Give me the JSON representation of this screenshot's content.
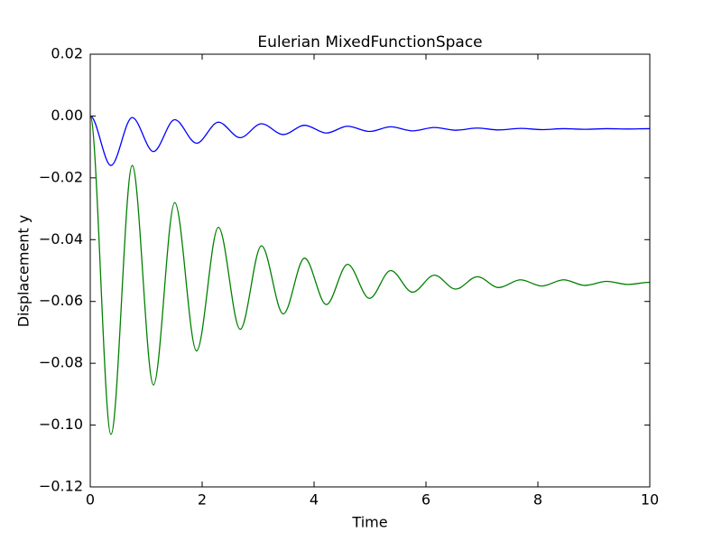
{
  "chart_data": {
    "type": "line",
    "title": "Eulerian MixedFunctionSpace",
    "xlabel": "Time",
    "ylabel": "Displacement y",
    "x": [
      0,
      0.37,
      0.75,
      1.13,
      1.51,
      1.9,
      2.29,
      2.68,
      3.06,
      3.45,
      3.83,
      4.22,
      4.6,
      4.99,
      5.37,
      5.76,
      6.15,
      6.53,
      6.92,
      7.3,
      7.69,
      8.07,
      8.46,
      8.84,
      9.23,
      9.61,
      10
    ],
    "series": [
      {
        "color": "#0000ff",
        "values": [
          0,
          -0.016,
          -0.0005,
          -0.0115,
          -0.0012,
          -0.0088,
          -0.002,
          -0.007,
          -0.0025,
          -0.006,
          -0.003,
          -0.0055,
          -0.0033,
          -0.005,
          -0.0035,
          -0.0048,
          -0.0037,
          -0.0046,
          -0.0039,
          -0.0045,
          -0.004,
          -0.0044,
          -0.0041,
          -0.0043,
          -0.0041,
          -0.0042,
          -0.0041
        ]
      },
      {
        "color": "#008000",
        "values": [
          0,
          -0.103,
          -0.016,
          -0.087,
          -0.028,
          -0.076,
          -0.036,
          -0.069,
          -0.042,
          -0.064,
          -0.046,
          -0.061,
          -0.048,
          -0.059,
          -0.05,
          -0.057,
          -0.0515,
          -0.056,
          -0.052,
          -0.0555,
          -0.053,
          -0.055,
          -0.053,
          -0.0548,
          -0.0535,
          -0.0545,
          -0.0538
        ]
      }
    ],
    "xlim": [
      0,
      10
    ],
    "xticks": [
      0,
      2,
      4,
      6,
      8,
      10
    ],
    "ylim": [
      -0.12,
      0.02
    ],
    "yticks": [
      {
        "value": -0.12,
        "label": "−0.12"
      },
      {
        "value": -0.1,
        "label": "−0.10"
      },
      {
        "value": -0.08,
        "label": "−0.08"
      },
      {
        "value": -0.06,
        "label": "−0.06"
      },
      {
        "value": -0.04,
        "label": "−0.04"
      },
      {
        "value": -0.02,
        "label": "−0.02"
      },
      {
        "value": 0,
        "label": "0.00"
      },
      {
        "value": 0.02,
        "label": "0.02"
      }
    ],
    "grid": false
  }
}
